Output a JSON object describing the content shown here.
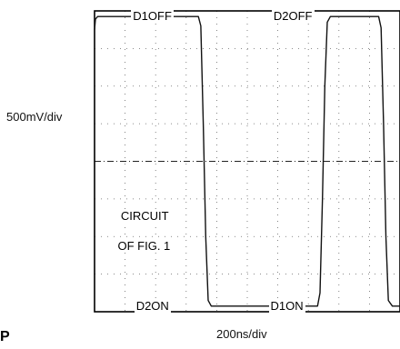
{
  "chart_data": {
    "type": "line",
    "title": "",
    "xlabel": "200ns/div",
    "ylabel": "500mV/div",
    "grid": true,
    "grid_divisions": {
      "x": 10,
      "y": 8
    },
    "x_unit": "div",
    "y_unit": "div",
    "xlim": [
      0,
      10
    ],
    "ylim": [
      -4,
      4
    ],
    "series": [
      {
        "x": [
          0.0,
          0.03,
          0.1,
          2.6,
          3.4,
          3.48,
          3.56,
          3.64,
          3.72,
          3.82,
          4.0,
          6.0,
          7.3,
          7.38,
          7.46,
          7.54,
          7.62,
          7.72,
          7.9,
          9.3,
          9.38,
          9.46,
          9.54,
          9.62,
          9.75,
          10.0
        ],
        "y": [
          3.5,
          3.78,
          3.85,
          3.85,
          3.85,
          3.6,
          1.0,
          -2.0,
          -3.7,
          -3.85,
          -3.85,
          -3.85,
          -3.85,
          -3.5,
          -1.0,
          2.0,
          3.7,
          3.85,
          3.85,
          3.85,
          3.55,
          1.0,
          -2.0,
          -3.7,
          -3.85,
          -3.85
        ]
      }
    ],
    "annotations": [
      {
        "text": "D1OFF",
        "x": 1.2,
        "y": 3.85
      },
      {
        "text": "D2OFF",
        "x": 5.8,
        "y": 3.85
      },
      {
        "text": "CIRCUIT",
        "x": 0.8,
        "y": -1.45
      },
      {
        "text": "OF FIG. 1",
        "x": 0.7,
        "y": -2.25
      },
      {
        "text": "D2ON",
        "x": 1.3,
        "y": -3.85
      },
      {
        "text": "D1ON",
        "x": 5.7,
        "y": -3.85
      }
    ]
  },
  "corner_letter": "P"
}
